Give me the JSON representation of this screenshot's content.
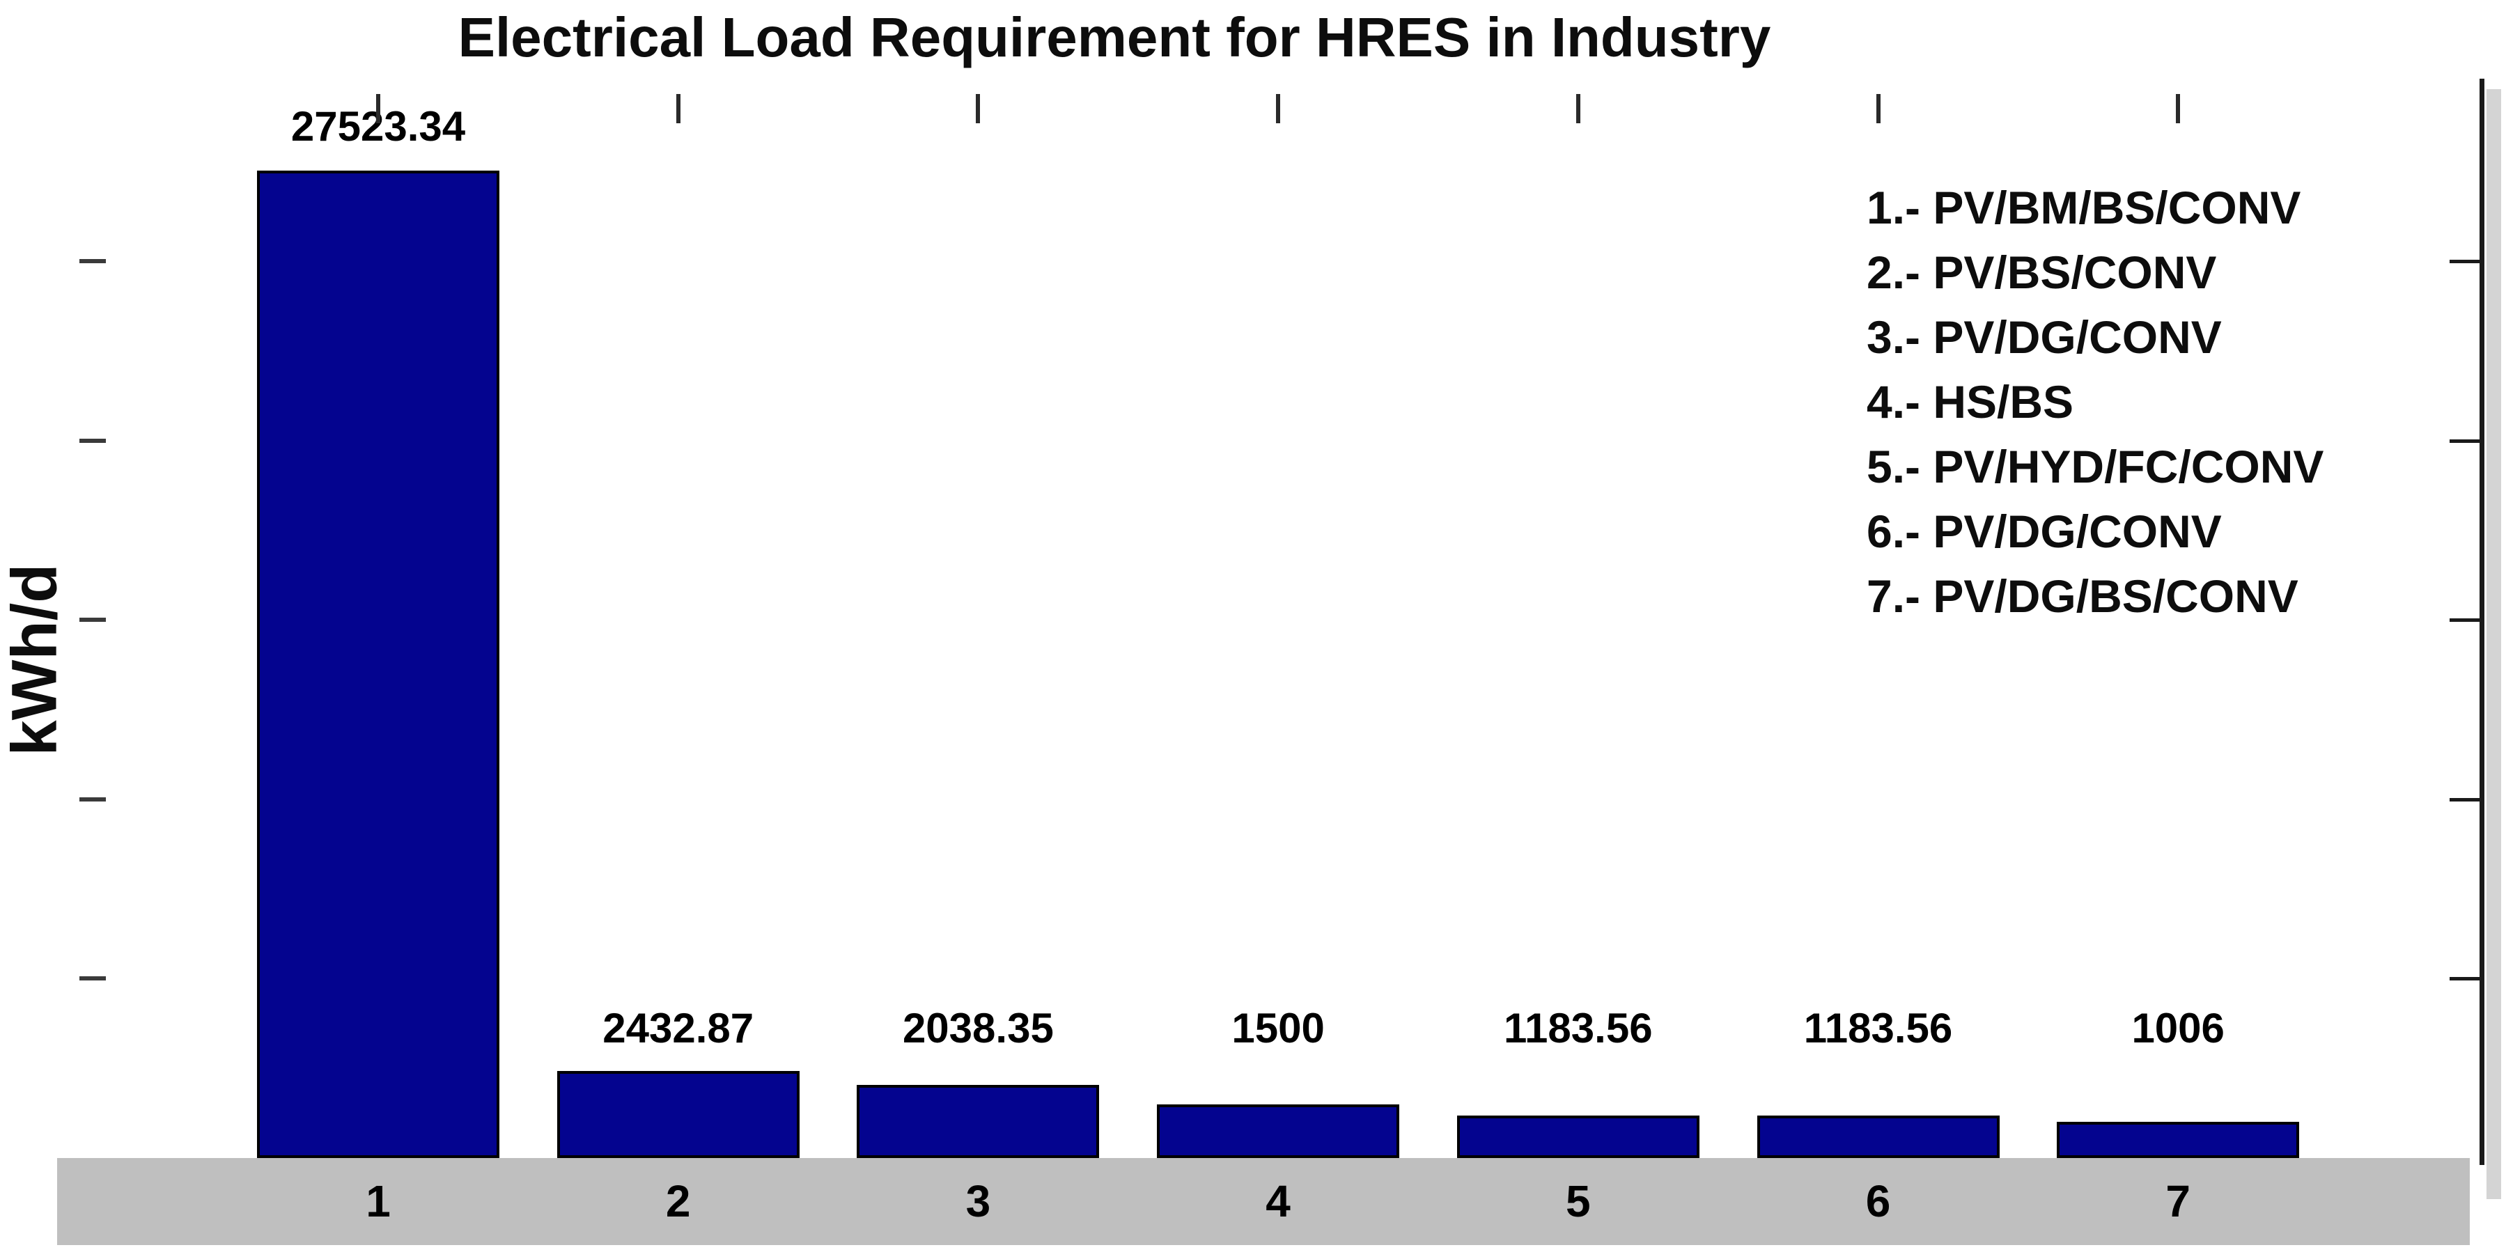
{
  "title": "Electrical Load Requirement for HRES in Industry",
  "y_axis_label": "kWh/d",
  "legend": {
    "position": "top-right",
    "entries": [
      "1.- PV/BM/BS/CONV",
      "2.- PV/BS/CONV",
      "3.- PV/DG/CONV",
      "4.- HS/BS",
      "5.- PV/HYD/FC/CONV",
      "6.- PV/DG/CONV",
      "7.- PV/DG/BS/CONV"
    ]
  },
  "chart_data": {
    "type": "bar",
    "title": "Electrical Load Requirement for HRES in Industry",
    "xlabel": "",
    "ylabel": "kWh/d",
    "categories": [
      "1",
      "2",
      "3",
      "4",
      "5",
      "6",
      "7"
    ],
    "values": [
      27523.34,
      2432.87,
      2038.35,
      1500,
      1183.56,
      1183.56,
      1006
    ],
    "value_labels": [
      "27523.34",
      "2432.87",
      "2038.35",
      "1500",
      "1183.56",
      "1183.56",
      "1006"
    ],
    "ylim": [
      0,
      28000
    ],
    "yticks": [
      5000,
      10000,
      15000,
      20000,
      25000
    ],
    "ytick_labels_shown": false,
    "grid": false,
    "legend_position": "top-right",
    "colors": {
      "bar_fill": "#04048f",
      "bar_edge": "#000000",
      "x_axis_band": "#bfbfbf",
      "band_shadow": "#d4d4d4",
      "text": "#000000",
      "background": "#ffffff"
    }
  }
}
